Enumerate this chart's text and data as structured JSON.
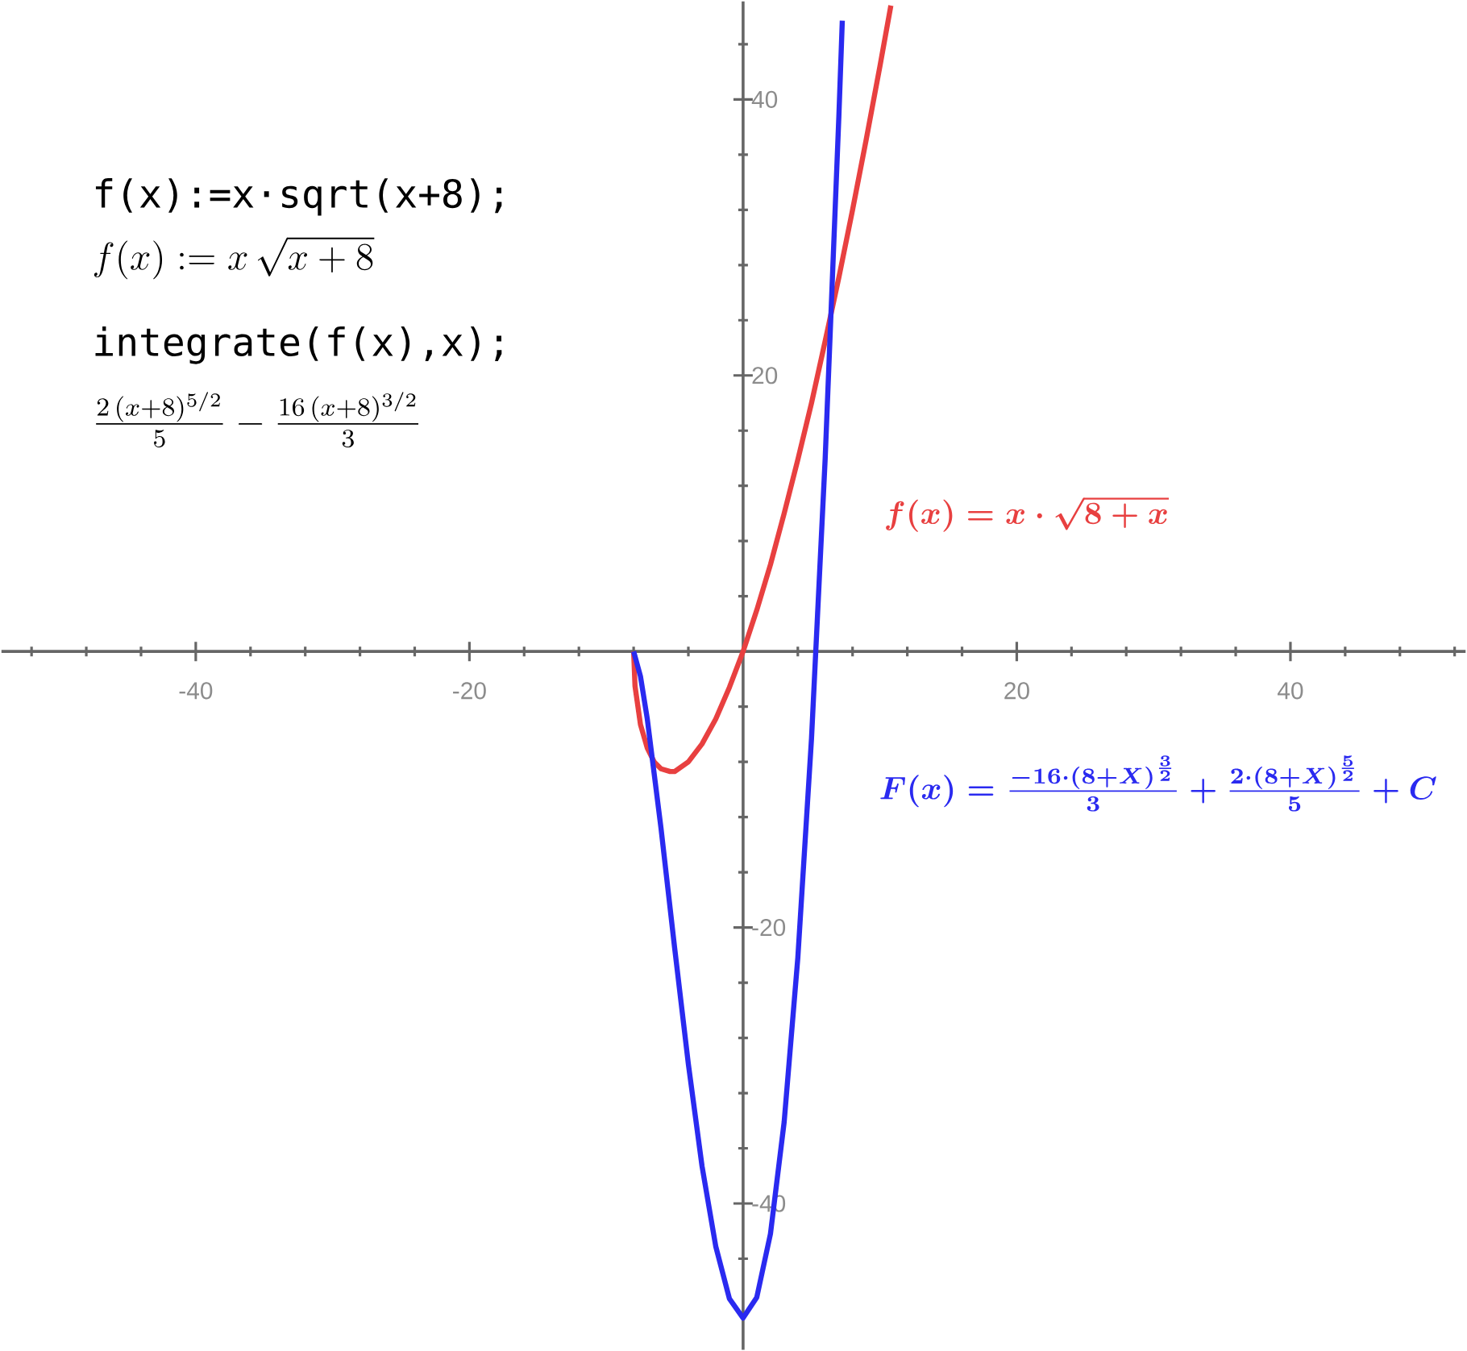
{
  "chart_data": {
    "type": "line",
    "xlim": [
      -54.2,
      52.8
    ],
    "ylim": [
      -50.6,
      47.1
    ],
    "xticks": [
      {
        "value": -52,
        "label": null
      },
      {
        "value": -48,
        "label": null
      },
      {
        "value": -44,
        "label": null
      },
      -40,
      {
        "value": -36,
        "label": null
      },
      {
        "value": -32,
        "label": null
      },
      {
        "value": -28,
        "label": null
      },
      {
        "value": -24,
        "label": null
      },
      -20,
      {
        "value": -16,
        "label": null
      },
      {
        "value": -12,
        "label": null
      },
      {
        "value": -8,
        "label": null
      },
      {
        "value": -4,
        "label": null
      },
      {
        "value": 4,
        "label": null
      },
      {
        "value": 8,
        "label": null
      },
      {
        "value": 12,
        "label": null
      },
      {
        "value": 16,
        "label": null
      },
      20,
      {
        "value": 24,
        "label": null
      },
      {
        "value": 28,
        "label": null
      },
      {
        "value": 32,
        "label": null
      },
      {
        "value": 36,
        "label": null
      },
      40,
      {
        "value": 44,
        "label": null
      },
      {
        "value": 48,
        "label": null
      },
      {
        "value": 52,
        "label": null
      }
    ],
    "yticks": [
      {
        "value": -48,
        "label": null
      },
      {
        "value": -44,
        "label": null
      },
      -40,
      {
        "value": -36,
        "label": null
      },
      {
        "value": -32,
        "label": null
      },
      {
        "value": -28,
        "label": null
      },
      {
        "value": -24,
        "label": null
      },
      -20,
      {
        "value": -16,
        "label": null
      },
      {
        "value": -12,
        "label": null
      },
      {
        "value": -8,
        "label": null
      },
      {
        "value": -4,
        "label": null
      },
      {
        "value": 4,
        "label": null
      },
      {
        "value": 8,
        "label": null
      },
      {
        "value": 12,
        "label": null
      },
      {
        "value": 16,
        "label": null
      },
      20,
      {
        "value": 24,
        "label": null
      },
      {
        "value": 28,
        "label": null
      },
      {
        "value": 32,
        "label": null
      },
      {
        "value": 36,
        "label": null
      },
      40,
      {
        "value": 44,
        "label": null
      }
    ],
    "grid": false,
    "marker": "none",
    "line_style": "solid",
    "series": [
      {
        "name": "f(x)=x\\cdot\\sqrt{8+x}",
        "color": "#e84040",
        "x": [
          -8,
          -7.9,
          -7.5,
          -7,
          -6.5,
          -6,
          -5.33,
          -5,
          -4,
          -3,
          -2,
          -1,
          0,
          1,
          2,
          3,
          4,
          5,
          6,
          7,
          8,
          9,
          10,
          10.8
        ],
        "values": [
          0,
          -2.5,
          -5.3,
          -7,
          -8,
          -8.5,
          -8.7,
          -8.7,
          -8,
          -6.7,
          -4.9,
          -2.6,
          0,
          3,
          6.3,
          10,
          13.9,
          18,
          22.5,
          27.1,
          32,
          37.1,
          42.4,
          46.8
        ]
      },
      {
        "name": "F(x)=\\frac{-16\\cdot(8+X)^{\\frac{3}{2}}}{3}+\\frac{2\\cdot(8+X)^{\\frac{5}{2}}}{5}+C",
        "color": "#2a2af0",
        "x": [
          -8,
          -7.5,
          -7,
          -6,
          -5,
          -4,
          -3,
          -2,
          -1,
          0,
          1,
          2,
          3,
          4,
          5,
          6,
          7,
          7.25
        ],
        "values": [
          0,
          -1.8,
          -4.9,
          -12.8,
          -21.5,
          -29.9,
          -37.3,
          -43.1,
          -46.9,
          -48.3,
          -46.8,
          -42.2,
          -34.1,
          -22.2,
          -6.3,
          14,
          38.8,
          45.7
        ]
      }
    ],
    "annotations": [
      "f(x):=x·sqrt(x+8);",
      "f(x):=x\\,\\sqrt{x+8}",
      "integrate(f(x),x);",
      "\\frac{2\\,(x+8)^{5/2}}{5}-\\frac{16\\,(x+8)^{3/2}}{3}"
    ]
  }
}
